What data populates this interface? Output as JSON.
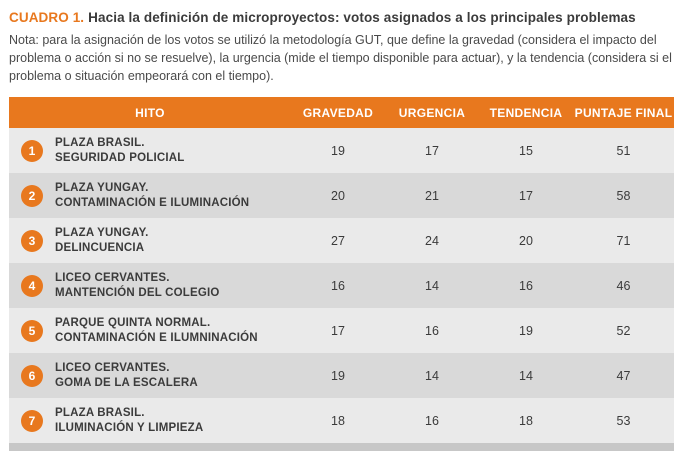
{
  "title": {
    "label": "CUADRO 1.",
    "text": "Hacia la definición de microproyectos: votos asignados a los principales problemas"
  },
  "note": "Nota: para la asignación de los votos se utilizó la metodología GUT, que define la gravedad (considera el impacto del problema o acción si no se resuelve), la urgencia (mide el tiempo disponible para actuar), y la tendencia (considera si el problema o situación empeorará con el tiempo).",
  "colors": {
    "accent_orange": "#e8781e",
    "row_light": "#eaeaea",
    "row_dark": "#d9d9d9",
    "footer_gray": "#c7c7c7"
  },
  "table": {
    "headers": [
      "HITO",
      "GRAVEDAD",
      "URGENCIA",
      "TENDENCIA",
      "PUNTAJE FINAL"
    ],
    "rows": [
      {
        "num": "1",
        "line1": "PLAZA BRASIL.",
        "line2": "SEGURIDAD POLICIAL",
        "gravedad": 19,
        "urgencia": 17,
        "tendencia": 15,
        "puntaje": 51
      },
      {
        "num": "2",
        "line1": "PLAZA YUNGAY.",
        "line2": "CONTAMINACIÓN E ILUMINACIÓN",
        "gravedad": 20,
        "urgencia": 21,
        "tendencia": 17,
        "puntaje": 58
      },
      {
        "num": "3",
        "line1": "PLAZA YUNGAY.",
        "line2": "DELINCUENCIA",
        "gravedad": 27,
        "urgencia": 24,
        "tendencia": 20,
        "puntaje": 71
      },
      {
        "num": "4",
        "line1": "LICEO CERVANTES.",
        "line2": "MANTENCIÓN DEL COLEGIO",
        "gravedad": 16,
        "urgencia": 14,
        "tendencia": 16,
        "puntaje": 46
      },
      {
        "num": "5",
        "line1": "PARQUE QUINTA NORMAL.",
        "line2": "CONTAMINACIÓN E ILUMNINACIÓN",
        "gravedad": 17,
        "urgencia": 16,
        "tendencia": 19,
        "puntaje": 52
      },
      {
        "num": "6",
        "line1": "LICEO CERVANTES.",
        "line2": "GOMA DE LA ESCALERA",
        "gravedad": 19,
        "urgencia": 14,
        "tendencia": 14,
        "puntaje": 47
      },
      {
        "num": "7",
        "line1": "PLAZA BRASIL.",
        "line2": "ILUMINACIÓN Y LIMPIEZA",
        "gravedad": 18,
        "urgencia": 16,
        "tendencia": 18,
        "puntaje": 53
      }
    ]
  },
  "chart_data": {
    "type": "table",
    "title": "CUADRO 1. Hacia la definición de microproyectos: votos asignados a los principales problemas",
    "columns": [
      "HITO",
      "GRAVEDAD",
      "URGENCIA",
      "TENDENCIA",
      "PUNTAJE FINAL"
    ],
    "rows": [
      [
        "PLAZA BRASIL. SEGURIDAD POLICIAL",
        19,
        17,
        15,
        51
      ],
      [
        "PLAZA YUNGAY. CONTAMINACIÓN E ILUMINACIÓN",
        20,
        21,
        17,
        58
      ],
      [
        "PLAZA YUNGAY. DELINCUENCIA",
        27,
        24,
        20,
        71
      ],
      [
        "LICEO CERVANTES. MANTENCIÓN DEL COLEGIO",
        16,
        14,
        16,
        46
      ],
      [
        "PARQUE QUINTA NORMAL. CONTAMINACIÓN E ILUMNINACIÓN",
        17,
        16,
        19,
        52
      ],
      [
        "LICEO CERVANTES. GOMA DE LA ESCALERA",
        19,
        14,
        14,
        47
      ],
      [
        "PLAZA BRASIL. ILUMINACIÓN Y LIMPIEZA",
        18,
        16,
        18,
        53
      ]
    ]
  }
}
